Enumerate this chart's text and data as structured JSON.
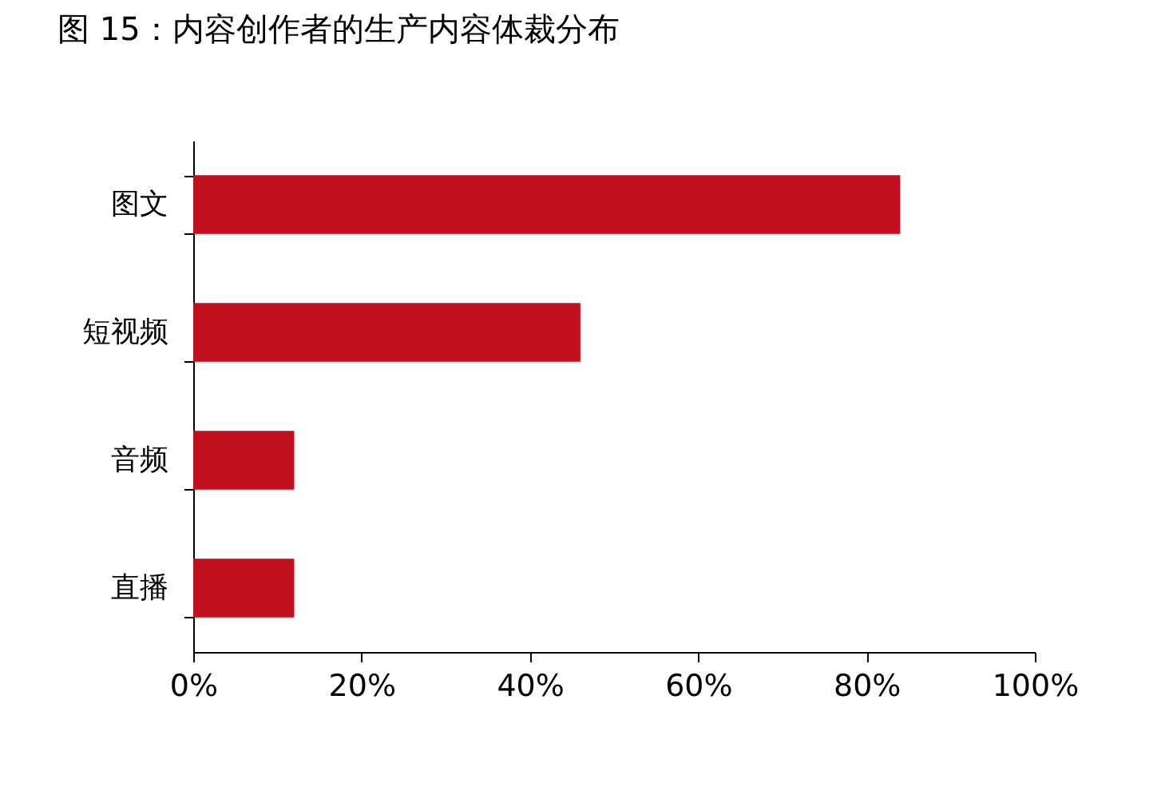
{
  "chart_data": {
    "type": "bar",
    "title": "图 15：内容创作者的生产内容体裁分布",
    "orientation": "horizontal",
    "categories": [
      "图文",
      "短视频",
      "音频",
      "直播"
    ],
    "values": [
      84,
      46,
      12,
      12
    ],
    "color": "#c00f1e",
    "xlim": [
      0,
      100
    ],
    "xticks": [
      {
        "value": 0,
        "label": "0%"
      },
      {
        "value": 20,
        "label": "20%"
      },
      {
        "value": 40,
        "label": "40%"
      },
      {
        "value": 60,
        "label": "60%"
      },
      {
        "value": 80,
        "label": "80%"
      },
      {
        "value": 100,
        "label": "100%"
      }
    ],
    "grid": false
  }
}
